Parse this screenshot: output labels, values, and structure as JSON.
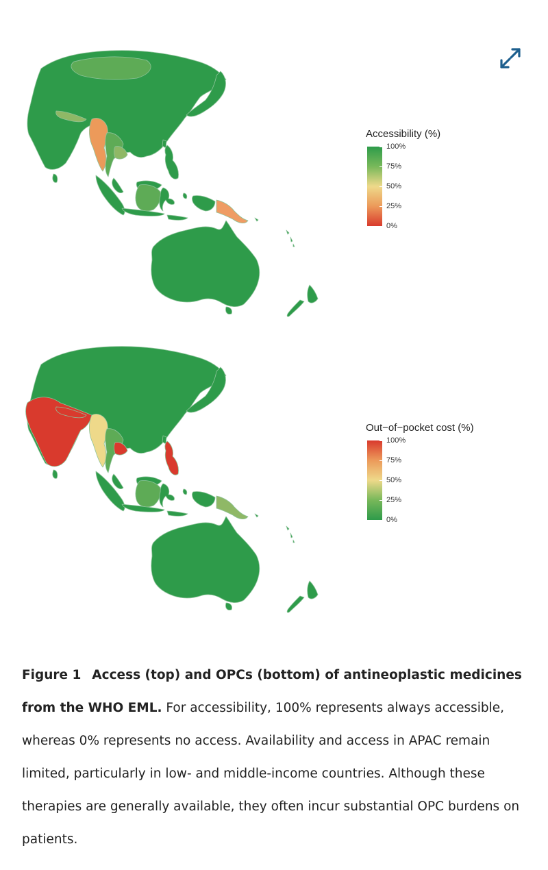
{
  "colors": {
    "green": "#2e9b4a",
    "light_green": "#5eab56",
    "olive": "#8fb866",
    "yellow": "#eed98a",
    "orange": "#ec9a5a",
    "salmon": "#ef9c64",
    "red": "#d93a2d",
    "border": "#8fc49b",
    "accent_icon": "#1d5f8e"
  },
  "icons": {
    "expand": "expand-arrows-icon"
  },
  "legend_top": {
    "title": "Accessibility (%)",
    "gradient": [
      "#2e9b4a",
      "#78b85a",
      "#eed98a",
      "#ec9a5a",
      "#d93a2d"
    ],
    "ticks": [
      {
        "label": "100%",
        "value": 100
      },
      {
        "label": "75%",
        "value": 75
      },
      {
        "label": "50%",
        "value": 50
      },
      {
        "label": "25%",
        "value": 25
      },
      {
        "label": "0%",
        "value": 0
      }
    ]
  },
  "legend_bottom": {
    "title": "Out−of−pocket cost (%)",
    "gradient": [
      "#d93a2d",
      "#ec9a5a",
      "#eed98a",
      "#78b85a",
      "#2e9b4a"
    ],
    "ticks": [
      {
        "label": "100%",
        "value": 100
      },
      {
        "label": "75%",
        "value": 75
      },
      {
        "label": "50%",
        "value": 50
      },
      {
        "label": "25%",
        "value": 25
      },
      {
        "label": "0%",
        "value": 0
      }
    ]
  },
  "caption": {
    "label": "Figure 1",
    "title": "Access (top) and OPCs (bottom) of antineoplastic medicines from the WHO EML.",
    "body": "For accessibility, 100% represents always accessible, whereas 0% represents no access. Availability and access in APAC remain limited, particularly in low- and middle-income countries. Although these therapies are generally available, they often incur substantial OPC burdens on patients."
  }
}
